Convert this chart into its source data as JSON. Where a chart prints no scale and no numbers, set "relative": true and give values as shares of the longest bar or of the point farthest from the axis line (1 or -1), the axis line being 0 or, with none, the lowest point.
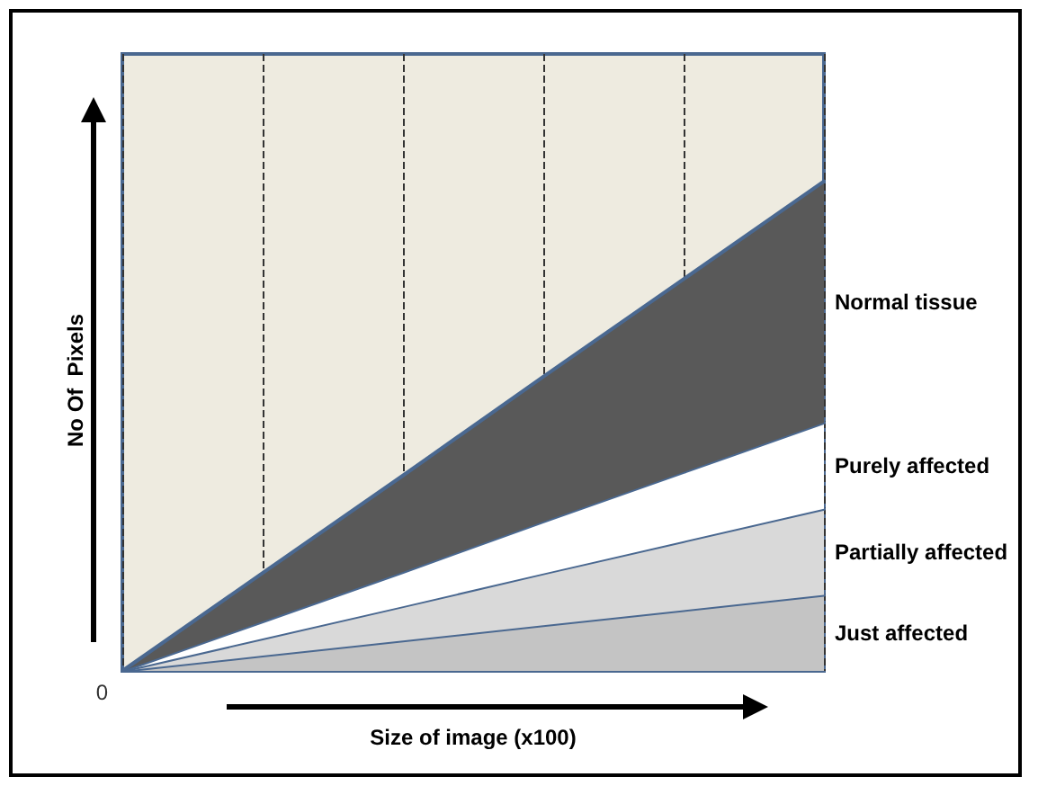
{
  "chart_data": {
    "type": "area",
    "xlabel": "Size of image (x100)",
    "ylabel": "No Of  Pixels",
    "annotations": [
      "0"
    ],
    "categories": [
      null,
      null,
      null,
      null,
      null,
      null
    ],
    "relative": true,
    "stacked": true,
    "grid": "x",
    "legend": false,
    "marker": "none",
    "line_style": "solid",
    "series": [
      {
        "name": "Just affected",
        "color": "#c4c4c4",
        "values": [
          0,
          0.031,
          0.062,
          0.093,
          0.124,
          0.155
        ]
      },
      {
        "name": "Partially affected",
        "color": "#d9d9d9",
        "values": [
          0,
          0.035,
          0.07,
          0.106,
          0.141,
          0.176
        ]
      },
      {
        "name": "Purely affected",
        "color": "#ffffff",
        "values": [
          0,
          0.035,
          0.07,
          0.106,
          0.141,
          0.176
        ]
      },
      {
        "name": "Normal tissue",
        "color": "#595959",
        "values": [
          0,
          0.099,
          0.197,
          0.296,
          0.394,
          0.493
        ]
      }
    ]
  }
}
